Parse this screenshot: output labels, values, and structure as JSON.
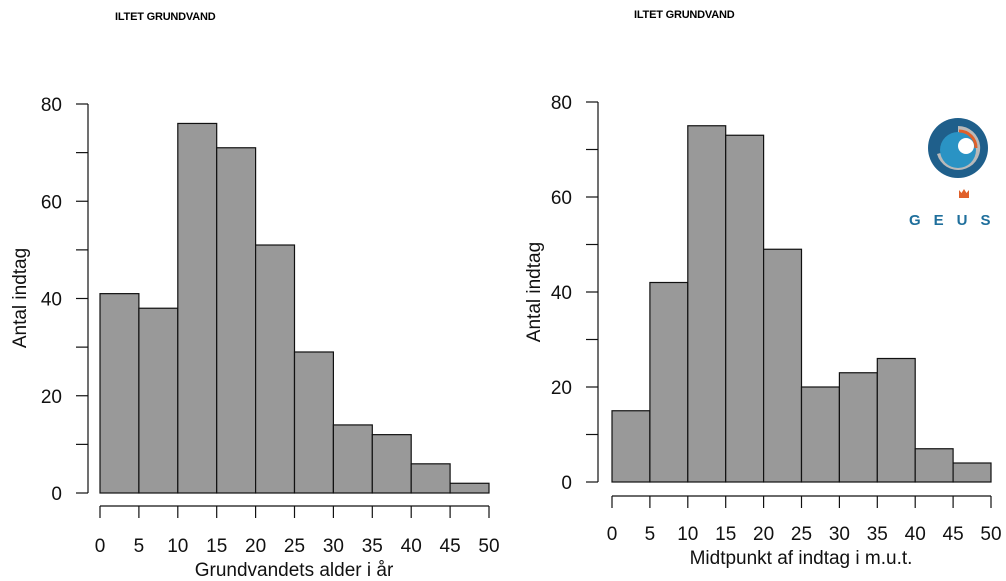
{
  "chart_data": [
    {
      "type": "bar",
      "title": "ILTET GRUNDVAND",
      "xlabel": "Grundvandets alder i år",
      "ylabel": "Antal indtag",
      "bin_edges": [
        0,
        5,
        10,
        15,
        20,
        25,
        30,
        35,
        40,
        45,
        50
      ],
      "values": [
        41,
        38,
        76,
        71,
        51,
        29,
        14,
        12,
        6,
        2
      ],
      "xticks": [
        "0",
        "5",
        "10",
        "15",
        "20",
        "25",
        "30",
        "35",
        "40",
        "45",
        "50"
      ],
      "yticks": [
        "0",
        "20",
        "40",
        "60",
        "80"
      ],
      "ylim": [
        0,
        80
      ],
      "xlim": [
        0,
        50
      ],
      "bar_color": "#999999"
    },
    {
      "type": "bar",
      "title": "ILTET GRUNDVAND",
      "xlabel": "Midtpunkt af indtag i m.u.t.",
      "ylabel": "Antal indtag",
      "bin_edges": [
        0,
        5,
        10,
        15,
        20,
        25,
        30,
        35,
        40,
        45,
        50
      ],
      "values": [
        15,
        42,
        75,
        73,
        49,
        20,
        23,
        26,
        7,
        4
      ],
      "xticks": [
        "0",
        "5",
        "10",
        "15",
        "20",
        "25",
        "30",
        "35",
        "40",
        "45",
        "50"
      ],
      "yticks": [
        "0",
        "20",
        "40",
        "60",
        "80"
      ],
      "ylim": [
        0,
        80
      ],
      "xlim": [
        0,
        50
      ],
      "bar_color": "#999999"
    }
  ],
  "logo": {
    "text": "GEUS",
    "colors": {
      "dark": "#1f5f8b",
      "mid": "#2a93c4",
      "light": "#b9b9b9",
      "accent": "#e0602a"
    }
  }
}
